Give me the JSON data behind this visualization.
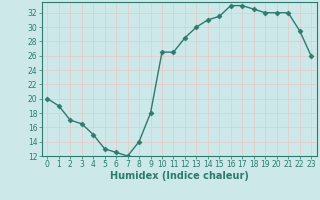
{
  "x": [
    0,
    1,
    2,
    3,
    4,
    5,
    6,
    7,
    8,
    9,
    10,
    11,
    12,
    13,
    14,
    15,
    16,
    17,
    18,
    19,
    20,
    21,
    22,
    23
  ],
  "y": [
    20,
    19,
    17,
    16.5,
    15,
    13,
    12.5,
    12,
    14,
    18,
    26.5,
    26.5,
    28.5,
    30,
    31,
    31.5,
    33,
    33,
    32.5,
    32,
    32,
    32,
    29.5,
    26
  ],
  "line_color": "#2d7a6e",
  "marker": "D",
  "marker_size": 2.5,
  "bg_color": "#cce8e8",
  "grid_color": "#b0d0d0",
  "xlabel": "Humidex (Indice chaleur)",
  "ylim": [
    12,
    33.5
  ],
  "xlim": [
    -0.5,
    23.5
  ],
  "yticks": [
    12,
    14,
    16,
    18,
    20,
    22,
    24,
    26,
    28,
    30,
    32
  ],
  "xticks": [
    0,
    1,
    2,
    3,
    4,
    5,
    6,
    7,
    8,
    9,
    10,
    11,
    12,
    13,
    14,
    15,
    16,
    17,
    18,
    19,
    20,
    21,
    22,
    23
  ],
  "tick_fontsize": 5.5,
  "label_fontsize": 7,
  "line_width": 1.0
}
